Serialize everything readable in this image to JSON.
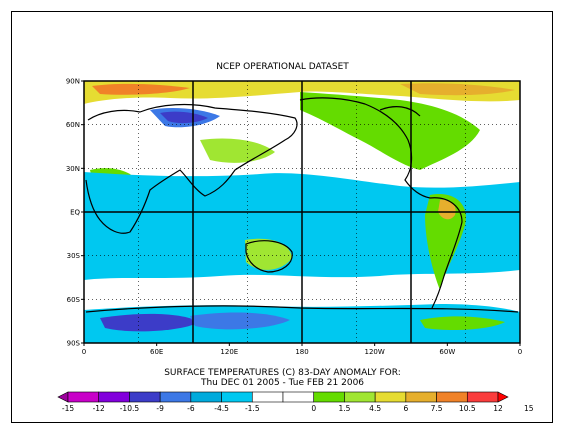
{
  "plot": {
    "title": "NCEP OPERATIONAL DATASET",
    "caption_line1": "SURFACE TEMPERATURES (C)   83-DAY ANOMALY FOR:",
    "caption_line2": "Thu DEC 01 2005 - Tue FEB 21 2006"
  },
  "axes": {
    "x_ticks": [
      "0",
      "60E",
      "120E",
      "180",
      "120W",
      "60W",
      "0"
    ],
    "y_ticks": [
      "90N",
      "60N",
      "30N",
      "EQ",
      "30S",
      "60S",
      "90S"
    ]
  },
  "colorbar": {
    "labels": [
      "-15",
      "-12",
      "-10.5",
      "-9",
      "-6",
      "-4.5",
      "-1.5",
      "0",
      "1.5",
      "4.5",
      "6",
      "7.5",
      "10.5",
      "12",
      "15"
    ],
    "colors": [
      "#9b009b",
      "#c800c8",
      "#8200dc",
      "#3c3cc8",
      "#3c78e6",
      "#00aadc",
      "#00c8f0",
      "#ffffff",
      "#ffffff",
      "#64dc00",
      "#a0e632",
      "#e6dc32",
      "#e6af2d",
      "#f08228",
      "#fa3c3c",
      "#ff0000"
    ]
  },
  "legend_colors": {
    "land_outline": "#000000",
    "water_cold": "#00c8f0",
    "warm": "#64dc00"
  }
}
